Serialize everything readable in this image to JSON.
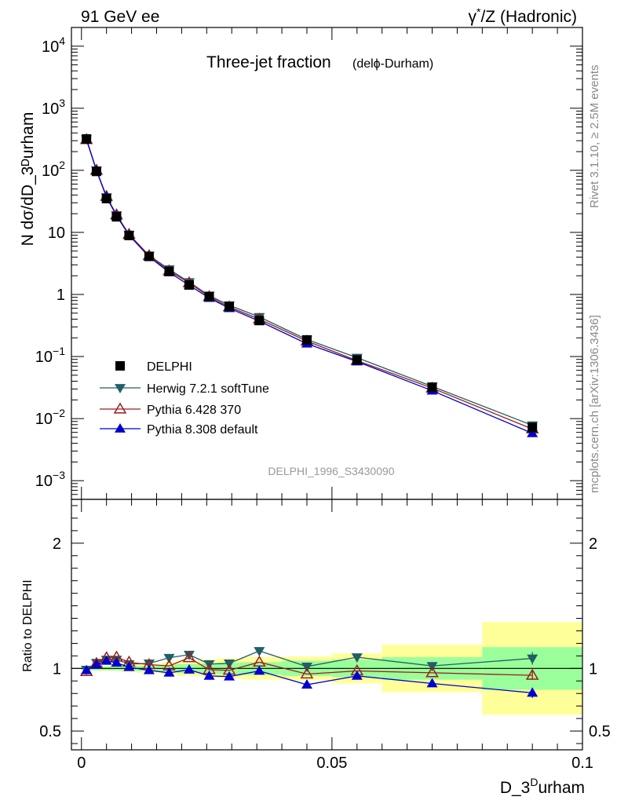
{
  "header": {
    "left_label": "91 GeV ee",
    "right_label_gamma": "γ",
    "right_label_rest": "/Z (Hadronic)",
    "right_label_star": "*"
  },
  "side": {
    "rivet": "Rivet 3.1.10, ≥ 2.5M events",
    "mcplots": "mcplots.cern.ch [arXiv:1306.3436]"
  },
  "chart_data": [
    {
      "type": "line",
      "panel": "main",
      "title_main": "Three-jet fraction",
      "title_sub": "(delϕ-Durham)",
      "ylabel": "N dσ/dD_3ᴰurham",
      "analysis_id": "DELPHI_1996_S3430090",
      "yscale": "log",
      "ylim": [
        0.0005,
        20000
      ],
      "xlim": [
        -0.002,
        0.1
      ],
      "ytick_labels": [
        {
          "v": 10000,
          "base": "10",
          "exp": "4"
        },
        {
          "v": 1000,
          "base": "10",
          "exp": "3"
        },
        {
          "v": 100,
          "base": "10",
          "exp": "2"
        },
        {
          "v": 10,
          "base": "10",
          "exp": ""
        },
        {
          "v": 1,
          "base": "1",
          "exp": ""
        },
        {
          "v": 0.1,
          "base": "10",
          "exp": "−1"
        },
        {
          "v": 0.01,
          "base": "10",
          "exp": "−2"
        },
        {
          "v": 0.001,
          "base": "10",
          "exp": "−3"
        }
      ],
      "legend_position": "left-lower",
      "x": [
        0.001,
        0.003,
        0.005,
        0.007,
        0.0095,
        0.0135,
        0.0175,
        0.0215,
        0.0255,
        0.0295,
        0.0355,
        0.045,
        0.055,
        0.07,
        0.09
      ],
      "series": [
        {
          "name": "DELPHI",
          "color": "#000000",
          "marker": "square",
          "values": [
            320,
            96,
            35,
            17.8,
            8.9,
            4.1,
            2.35,
            1.42,
            0.93,
            0.64,
            0.38,
            0.185,
            0.088,
            0.032,
            0.0072
          ]
        },
        {
          "name": "Herwig 7.2.1 softTune",
          "color": "#215f66",
          "marker": "triangle-down",
          "values": [
            318,
            100,
            37,
            19.0,
            9.2,
            4.25,
            2.55,
            1.58,
            0.96,
            0.67,
            0.435,
            0.188,
            0.096,
            0.033,
            0.0078
          ]
        },
        {
          "name": "Pythia 6.428 370",
          "color": "#9c1c1c",
          "marker": "triangle-open",
          "values": [
            312,
            100,
            38,
            19.2,
            9.3,
            4.22,
            2.4,
            1.54,
            0.92,
            0.63,
            0.4,
            0.177,
            0.086,
            0.031,
            0.0068
          ]
        },
        {
          "name": "Pythia 8.308 default",
          "color": "#0000d0",
          "marker": "triangle",
          "values": [
            315,
            99,
            37,
            18.5,
            9.0,
            4.05,
            2.27,
            1.41,
            0.875,
            0.6,
            0.372,
            0.161,
            0.083,
            0.0282,
            0.0058
          ]
        }
      ]
    },
    {
      "type": "line",
      "panel": "ratio",
      "ylabel": "Ratio to DELPHI",
      "xlabel_base": "D_3",
      "xlabel_sup": "D",
      "xlabel_rest": "urham",
      "ylim": [
        0.35,
        2.35
      ],
      "xlim": [
        -0.002,
        0.1
      ],
      "ytick_labels": [
        "0.5",
        "1",
        "2"
      ],
      "xtick_labels": [
        "0",
        "0.05",
        "0.1"
      ],
      "x": [
        0.001,
        0.003,
        0.005,
        0.007,
        0.0095,
        0.0135,
        0.0175,
        0.0215,
        0.0255,
        0.0295,
        0.0355,
        0.045,
        0.055,
        0.07,
        0.09
      ],
      "bins": [
        [
          0,
          0.002
        ],
        [
          0.002,
          0.004
        ],
        [
          0.004,
          0.006
        ],
        [
          0.006,
          0.008
        ],
        [
          0.008,
          0.011
        ],
        [
          0.011,
          0.016
        ],
        [
          0.016,
          0.019
        ],
        [
          0.019,
          0.024
        ],
        [
          0.024,
          0.027
        ],
        [
          0.027,
          0.032
        ],
        [
          0.032,
          0.04
        ],
        [
          0.04,
          0.05
        ],
        [
          0.05,
          0.06
        ],
        [
          0.06,
          0.08
        ],
        [
          0.08,
          0.1
        ]
      ],
      "band_inner": [
        0.015,
        0.015,
        0.015,
        0.015,
        0.02,
        0.02,
        0.03,
        0.035,
        0.04,
        0.045,
        0.05,
        0.06,
        0.07,
        0.09,
        0.17
      ],
      "band_outer": [
        0.02,
        0.02,
        0.02,
        0.02,
        0.03,
        0.035,
        0.05,
        0.06,
        0.07,
        0.08,
        0.09,
        0.095,
        0.12,
        0.19,
        0.37
      ],
      "band_inner_color": "#9aff9a",
      "band_outer_color": "#ffff99",
      "series": [
        {
          "name": "Herwig 7.2.1 softTune",
          "color": "#215f66",
          "marker": "triangle-down",
          "values": [
            0.99,
            1.045,
            1.07,
            1.07,
            1.035,
            1.04,
            1.085,
            1.11,
            1.035,
            1.04,
            1.14,
            1.015,
            1.09,
            1.02,
            1.08
          ],
          "errors": [
            0,
            0,
            0,
            0,
            0,
            0,
            0,
            0,
            0,
            0,
            0,
            0,
            0,
            0,
            0.05
          ]
        },
        {
          "name": "Pythia 6.428 370",
          "color": "#9c1c1c",
          "marker": "triangle-open",
          "values": [
            0.975,
            1.04,
            1.085,
            1.09,
            1.05,
            1.03,
            1.02,
            1.085,
            0.99,
            0.985,
            1.05,
            0.955,
            0.98,
            0.965,
            0.945
          ],
          "errors": [
            0,
            0,
            0,
            0,
            0,
            0,
            0,
            0,
            0,
            0,
            0,
            0,
            0,
            0,
            0.035
          ]
        },
        {
          "name": "Pythia 8.308 default",
          "color": "#0000d0",
          "marker": "triangle",
          "values": [
            0.985,
            1.03,
            1.06,
            1.045,
            1.01,
            0.985,
            0.965,
            0.99,
            0.94,
            0.935,
            0.98,
            0.87,
            0.94,
            0.88,
            0.805
          ],
          "errors": [
            0,
            0,
            0,
            0,
            0,
            0,
            0,
            0,
            0,
            0,
            0,
            0,
            0,
            0.012,
            0.04
          ]
        }
      ]
    }
  ]
}
